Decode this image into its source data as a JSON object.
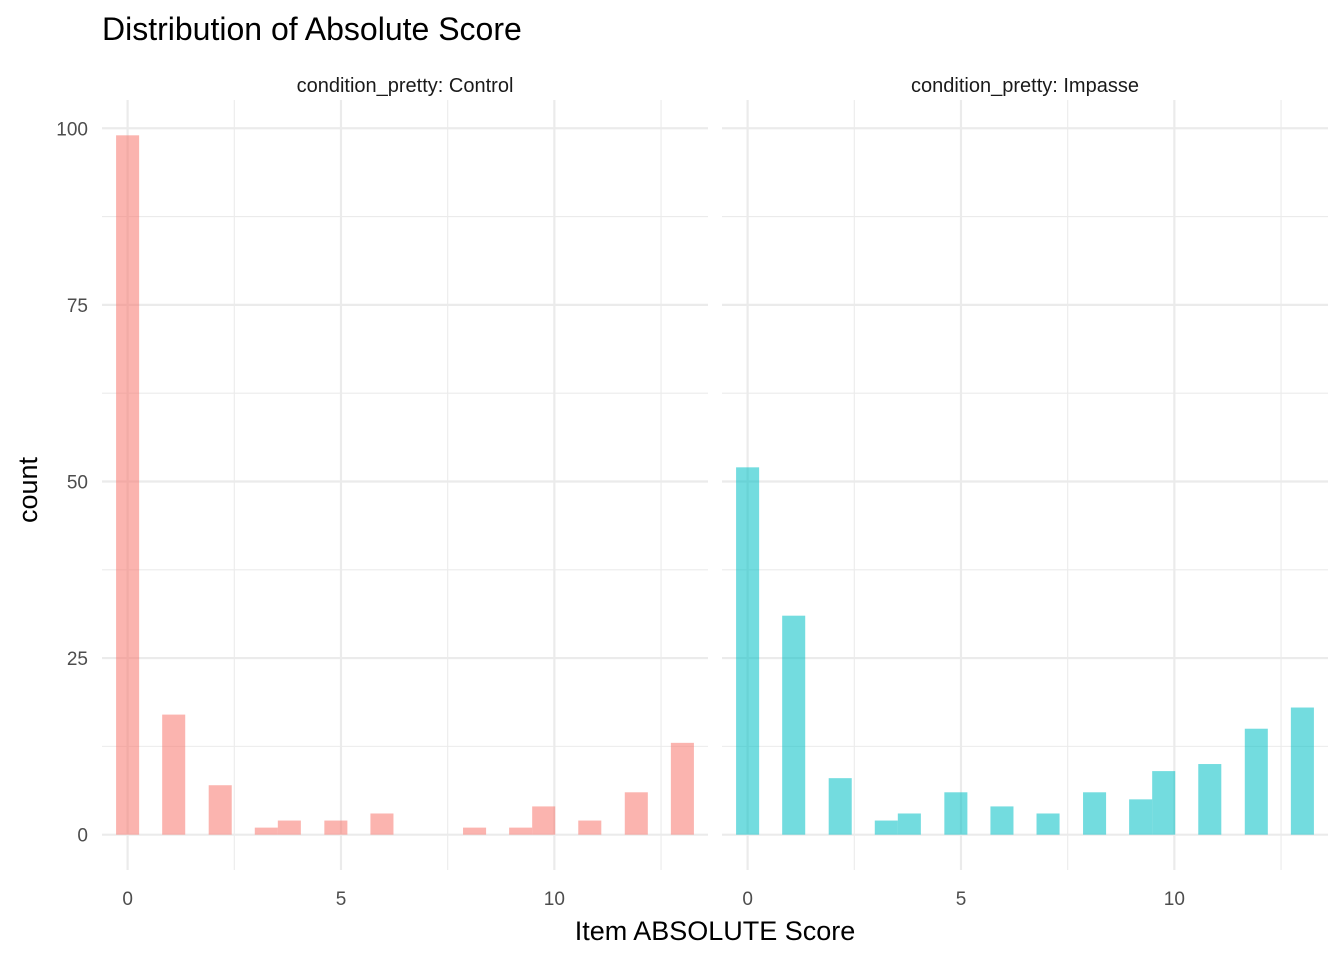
{
  "chart_data": {
    "type": "bar",
    "title": "Distribution of Absolute Score",
    "xlabel": "Item ABSOLUTE Score",
    "ylabel": "count",
    "xlim": [
      -0.6,
      13.6
    ],
    "ylim": [
      -5,
      104
    ],
    "x_ticks": [
      0,
      5,
      10
    ],
    "y_ticks": [
      0,
      25,
      50,
      75,
      100
    ],
    "grid": true,
    "legend": "none",
    "panels": [
      {
        "strip_label": "condition_pretty: Control",
        "color": "#F8766D",
        "bars": [
          {
            "x": 0.0,
            "count": 99
          },
          {
            "x": 1.08,
            "count": 17
          },
          {
            "x": 2.17,
            "count": 7
          },
          {
            "x": 3.25,
            "count": 1
          },
          {
            "x": 3.79,
            "count": 2
          },
          {
            "x": 4.88,
            "count": 2
          },
          {
            "x": 5.96,
            "count": 3
          },
          {
            "x": 8.13,
            "count": 1
          },
          {
            "x": 9.21,
            "count": 1
          },
          {
            "x": 9.75,
            "count": 4
          },
          {
            "x": 10.83,
            "count": 2
          },
          {
            "x": 11.92,
            "count": 6
          },
          {
            "x": 13.0,
            "count": 13
          }
        ]
      },
      {
        "strip_label": "condition_pretty: Impasse",
        "color": "#00BFC4",
        "bars": [
          {
            "x": 0.0,
            "count": 52
          },
          {
            "x": 1.08,
            "count": 31
          },
          {
            "x": 2.17,
            "count": 8
          },
          {
            "x": 3.25,
            "count": 2
          },
          {
            "x": 3.79,
            "count": 3
          },
          {
            "x": 4.88,
            "count": 6
          },
          {
            "x": 5.96,
            "count": 4
          },
          {
            "x": 7.04,
            "count": 3
          },
          {
            "x": 8.13,
            "count": 6
          },
          {
            "x": 9.21,
            "count": 5
          },
          {
            "x": 9.75,
            "count": 9
          },
          {
            "x": 10.83,
            "count": 10
          },
          {
            "x": 11.92,
            "count": 15
          },
          {
            "x": 13.0,
            "count": 18
          }
        ]
      }
    ]
  }
}
